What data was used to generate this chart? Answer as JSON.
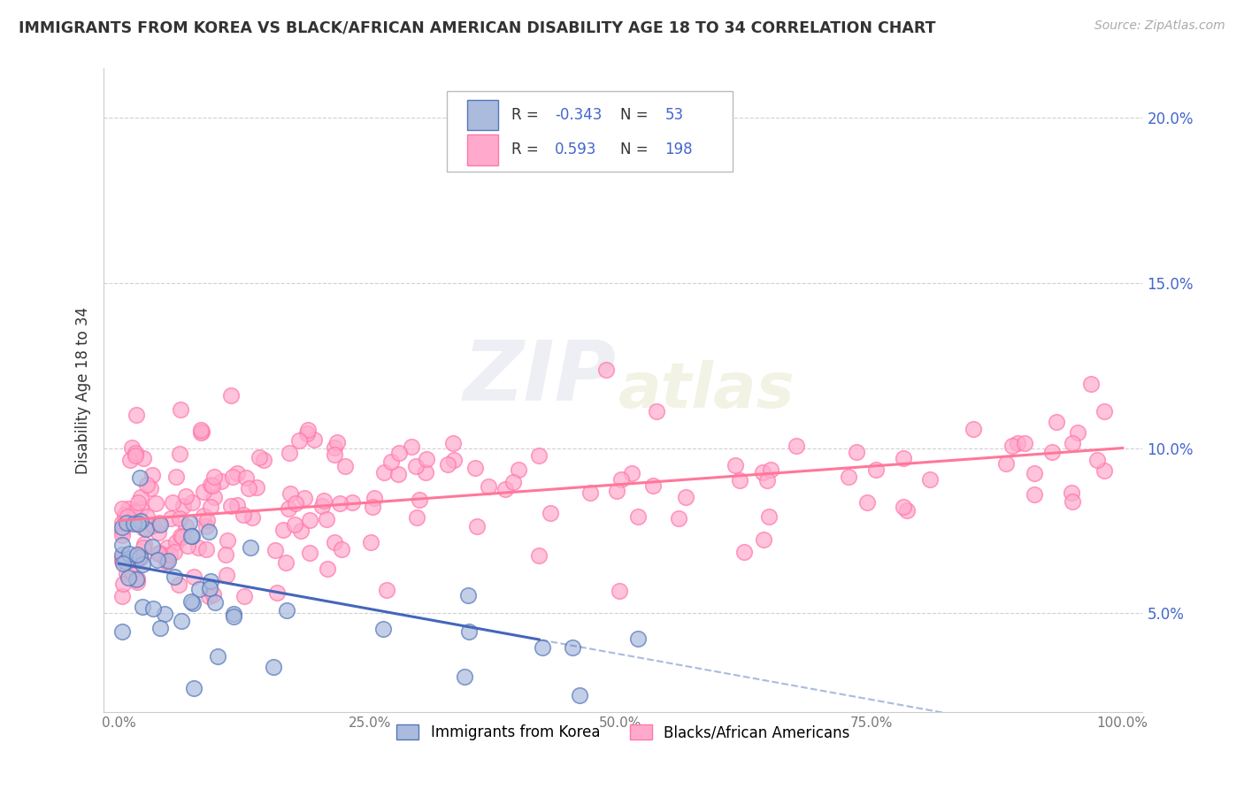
{
  "title": "IMMIGRANTS FROM KOREA VS BLACK/AFRICAN AMERICAN DISABILITY AGE 18 TO 34 CORRELATION CHART",
  "source": "Source: ZipAtlas.com",
  "ylabel": "Disability Age 18 to 34",
  "xlim": [
    0,
    100
  ],
  "ylim": [
    2.0,
    21.5
  ],
  "yticks": [
    5.0,
    10.0,
    15.0,
    20.0
  ],
  "xticks": [
    0,
    25,
    50,
    75,
    100
  ],
  "legend_R1": "-0.343",
  "legend_N1": "53",
  "legend_R2": "0.593",
  "legend_N2": "198",
  "series1_fill": "#AABBDD",
  "series1_edge": "#5577BB",
  "series2_fill": "#FFAACC",
  "series2_edge": "#FF77AA",
  "line1_color": "#4466BB",
  "line2_color": "#FF7799",
  "label_color": "#4466CC",
  "text_color": "#333333",
  "source_color": "#AAAAAA",
  "grid_color": "#CCCCCC",
  "background_color": "#FFFFFF",
  "watermark_color": "#E0E0EA",
  "line1_start_y": 6.5,
  "line1_slope": -0.055,
  "line2_start_y": 7.8,
  "line2_slope": 0.022,
  "blue_solid_end_x": 42
}
